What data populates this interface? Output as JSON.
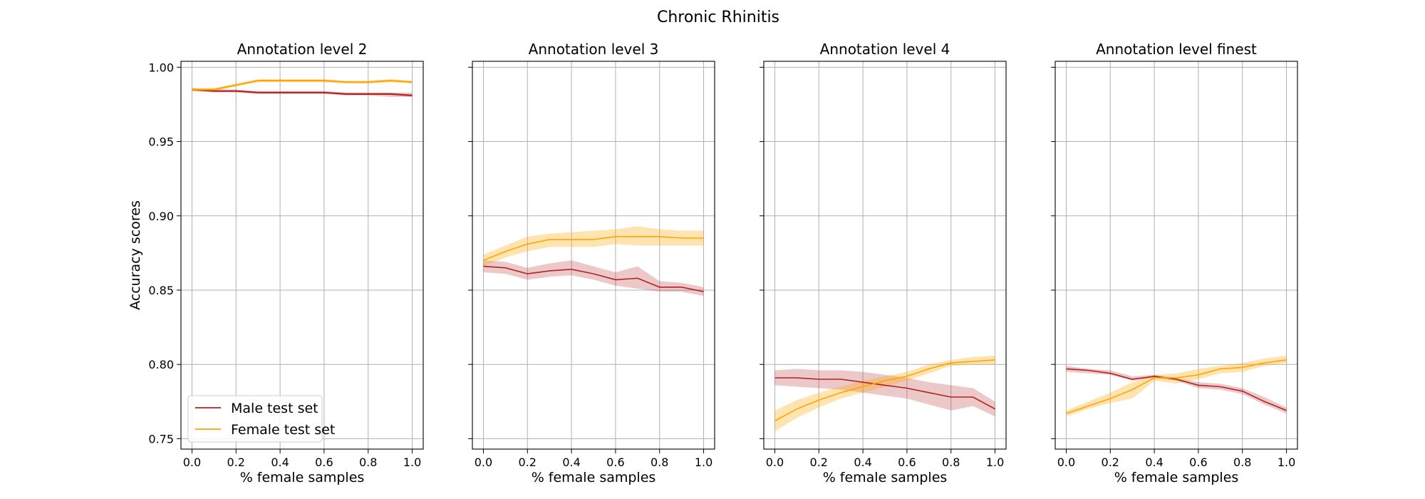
{
  "figure_title": "Chronic Rhinitis",
  "colors": {
    "male": "#b22222",
    "female": "#ffa500",
    "grid": "#b0b0b0",
    "axes": "#000000"
  },
  "legend": {
    "entries": [
      "Male test set",
      "Female test set"
    ],
    "location": "lower-left",
    "panel": 0
  },
  "chart_data": [
    {
      "type": "line",
      "title": "Annotation level 2",
      "xlabel": "% female samples",
      "ylabel": "Accuracy scores",
      "xlim": [
        -0.05,
        1.05
      ],
      "ylim": [
        0.743,
        1.004
      ],
      "xticks": [
        0.0,
        0.2,
        0.4,
        0.6,
        0.8,
        1.0
      ],
      "xtick_labels": [
        "0.0",
        "0.2",
        "0.4",
        "0.6",
        "0.8",
        "1.0"
      ],
      "yticks": [
        0.75,
        0.8,
        0.85,
        0.9,
        0.95,
        1.0
      ],
      "ytick_labels": [
        "0.75",
        "0.80",
        "0.85",
        "0.90",
        "0.95",
        "1.00"
      ],
      "grid": true,
      "x": [
        0.0,
        0.1,
        0.2,
        0.3,
        0.4,
        0.5,
        0.6,
        0.7,
        0.8,
        0.9,
        1.0
      ],
      "series": [
        {
          "name": "Male test set",
          "values": [
            0.985,
            0.984,
            0.984,
            0.983,
            0.983,
            0.983,
            0.983,
            0.982,
            0.982,
            0.982,
            0.981
          ],
          "lower": [
            0.984,
            0.983,
            0.983,
            0.982,
            0.982,
            0.982,
            0.982,
            0.981,
            0.981,
            0.98,
            0.98
          ],
          "upper": [
            0.986,
            0.985,
            0.985,
            0.984,
            0.984,
            0.984,
            0.984,
            0.983,
            0.983,
            0.983,
            0.983
          ]
        },
        {
          "name": "Female test set",
          "values": [
            0.985,
            0.985,
            0.988,
            0.991,
            0.991,
            0.991,
            0.991,
            0.99,
            0.99,
            0.991,
            0.99
          ],
          "lower": [
            0.984,
            0.984,
            0.987,
            0.99,
            0.99,
            0.99,
            0.99,
            0.989,
            0.989,
            0.99,
            0.989
          ],
          "upper": [
            0.986,
            0.986,
            0.989,
            0.992,
            0.992,
            0.992,
            0.992,
            0.991,
            0.991,
            0.992,
            0.991
          ]
        }
      ]
    },
    {
      "type": "line",
      "title": "Annotation level 3",
      "xlabel": "% female samples",
      "ylabel": "",
      "xlim": [
        -0.05,
        1.05
      ],
      "ylim": [
        0.743,
        1.004
      ],
      "xticks": [
        0.0,
        0.2,
        0.4,
        0.6,
        0.8,
        1.0
      ],
      "xtick_labels": [
        "0.0",
        "0.2",
        "0.4",
        "0.6",
        "0.8",
        "1.0"
      ],
      "yticks": [
        0.75,
        0.8,
        0.85,
        0.9,
        0.95,
        1.0
      ],
      "ytick_labels": [],
      "grid": true,
      "x": [
        0.0,
        0.1,
        0.2,
        0.3,
        0.4,
        0.5,
        0.6,
        0.7,
        0.8,
        0.9,
        1.0
      ],
      "series": [
        {
          "name": "Male test set",
          "values": [
            0.866,
            0.865,
            0.861,
            0.863,
            0.864,
            0.861,
            0.857,
            0.858,
            0.852,
            0.852,
            0.849
          ],
          "lower": [
            0.862,
            0.861,
            0.857,
            0.859,
            0.86,
            0.857,
            0.853,
            0.851,
            0.849,
            0.849,
            0.846
          ],
          "upper": [
            0.87,
            0.869,
            0.865,
            0.868,
            0.87,
            0.866,
            0.862,
            0.866,
            0.856,
            0.855,
            0.852
          ]
        },
        {
          "name": "Female test set",
          "values": [
            0.87,
            0.876,
            0.881,
            0.884,
            0.884,
            0.884,
            0.886,
            0.886,
            0.886,
            0.885,
            0.885
          ],
          "lower": [
            0.866,
            0.872,
            0.876,
            0.879,
            0.879,
            0.879,
            0.881,
            0.88,
            0.88,
            0.88,
            0.88
          ],
          "upper": [
            0.874,
            0.88,
            0.886,
            0.888,
            0.889,
            0.89,
            0.891,
            0.893,
            0.891,
            0.89,
            0.89
          ]
        }
      ]
    },
    {
      "type": "line",
      "title": "Annotation level 4",
      "xlabel": "% female samples",
      "ylabel": "",
      "xlim": [
        -0.05,
        1.05
      ],
      "ylim": [
        0.743,
        1.004
      ],
      "xticks": [
        0.0,
        0.2,
        0.4,
        0.6,
        0.8,
        1.0
      ],
      "xtick_labels": [
        "0.0",
        "0.2",
        "0.4",
        "0.6",
        "0.8",
        "1.0"
      ],
      "yticks": [
        0.75,
        0.8,
        0.85,
        0.9,
        0.95,
        1.0
      ],
      "ytick_labels": [],
      "grid": true,
      "x": [
        0.0,
        0.1,
        0.2,
        0.3,
        0.4,
        0.5,
        0.6,
        0.7,
        0.8,
        0.9,
        1.0
      ],
      "series": [
        {
          "name": "Male test set",
          "values": [
            0.791,
            0.791,
            0.79,
            0.79,
            0.788,
            0.786,
            0.784,
            0.781,
            0.778,
            0.778,
            0.77
          ],
          "lower": [
            0.786,
            0.785,
            0.784,
            0.783,
            0.781,
            0.779,
            0.777,
            0.773,
            0.769,
            0.772,
            0.765
          ],
          "upper": [
            0.796,
            0.797,
            0.796,
            0.796,
            0.795,
            0.793,
            0.791,
            0.788,
            0.786,
            0.784,
            0.775
          ]
        },
        {
          "name": "Female test set",
          "values": [
            0.762,
            0.77,
            0.776,
            0.781,
            0.785,
            0.789,
            0.792,
            0.797,
            0.801,
            0.802,
            0.803
          ],
          "lower": [
            0.755,
            0.764,
            0.771,
            0.777,
            0.781,
            0.785,
            0.789,
            0.794,
            0.799,
            0.8,
            0.8
          ],
          "upper": [
            0.769,
            0.776,
            0.781,
            0.785,
            0.789,
            0.792,
            0.795,
            0.8,
            0.803,
            0.805,
            0.806
          ]
        }
      ]
    },
    {
      "type": "line",
      "title": "Annotation level finest",
      "xlabel": "% female samples",
      "ylabel": "",
      "xlim": [
        -0.05,
        1.05
      ],
      "ylim": [
        0.743,
        1.004
      ],
      "xticks": [
        0.0,
        0.2,
        0.4,
        0.6,
        0.8,
        1.0
      ],
      "xtick_labels": [
        "0.0",
        "0.2",
        "0.4",
        "0.6",
        "0.8",
        "1.0"
      ],
      "yticks": [
        0.75,
        0.8,
        0.85,
        0.9,
        0.95,
        1.0
      ],
      "ytick_labels": [],
      "grid": true,
      "x": [
        0.0,
        0.1,
        0.2,
        0.3,
        0.4,
        0.5,
        0.6,
        0.7,
        0.8,
        0.9,
        1.0
      ],
      "series": [
        {
          "name": "Male test set",
          "values": [
            0.797,
            0.796,
            0.794,
            0.79,
            0.792,
            0.79,
            0.786,
            0.785,
            0.782,
            0.775,
            0.769
          ],
          "lower": [
            0.795,
            0.794,
            0.793,
            0.789,
            0.791,
            0.789,
            0.784,
            0.783,
            0.78,
            0.773,
            0.767
          ],
          "upper": [
            0.799,
            0.797,
            0.796,
            0.792,
            0.793,
            0.791,
            0.788,
            0.787,
            0.784,
            0.778,
            0.771
          ]
        },
        {
          "name": "Female test set",
          "values": [
            0.767,
            0.772,
            0.777,
            0.783,
            0.791,
            0.791,
            0.793,
            0.797,
            0.798,
            0.801,
            0.803
          ],
          "lower": [
            0.765,
            0.77,
            0.774,
            0.777,
            0.789,
            0.787,
            0.79,
            0.794,
            0.795,
            0.799,
            0.801
          ],
          "upper": [
            0.769,
            0.775,
            0.781,
            0.788,
            0.793,
            0.794,
            0.797,
            0.799,
            0.801,
            0.804,
            0.806
          ]
        }
      ]
    }
  ]
}
